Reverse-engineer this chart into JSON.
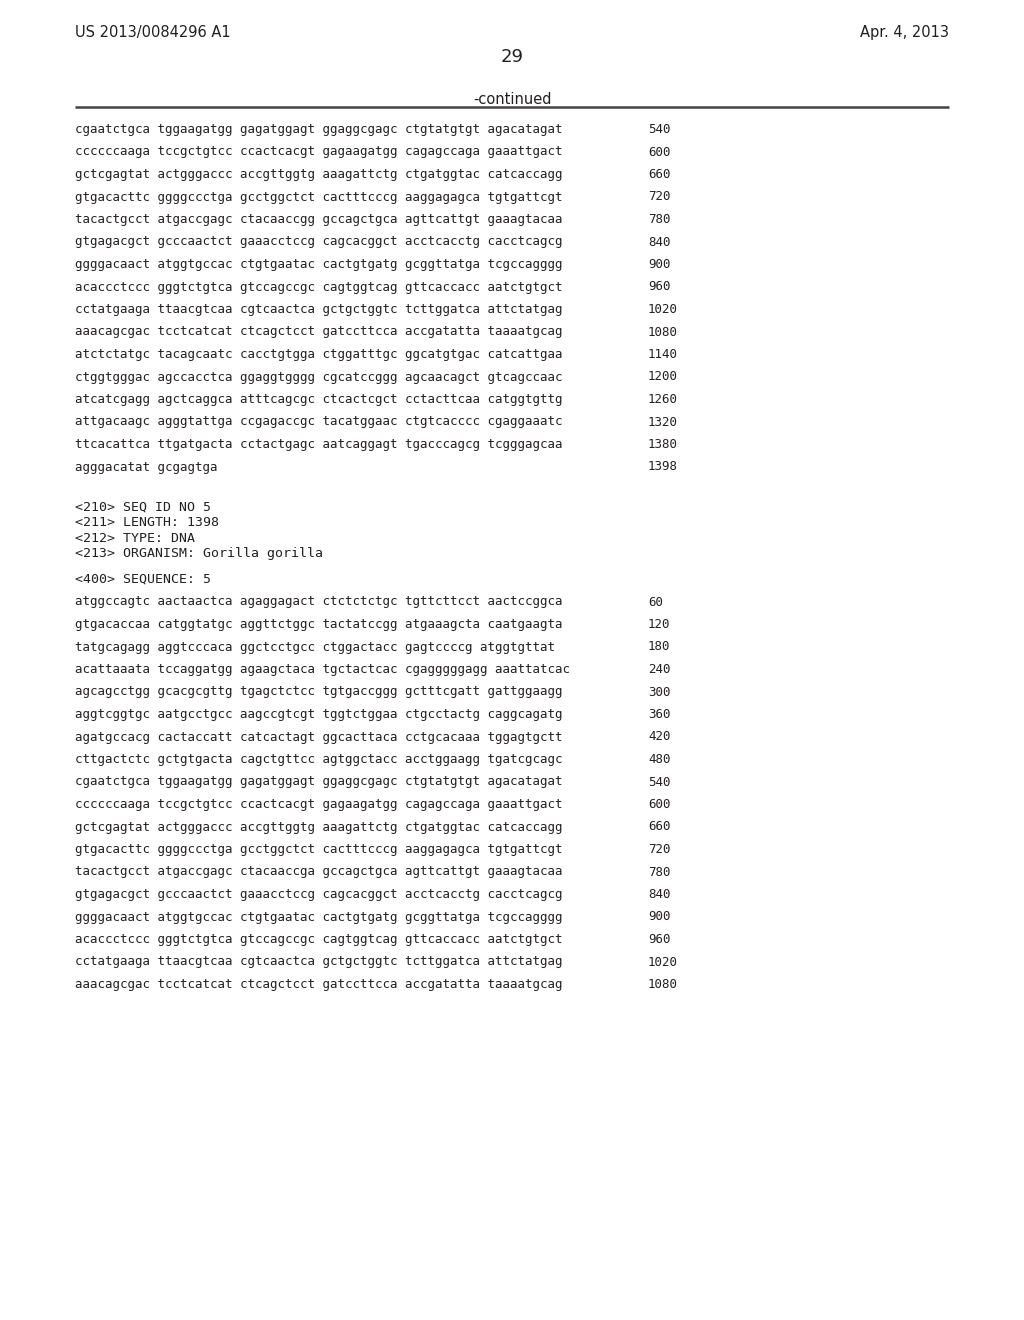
{
  "header_left": "US 2013/0084296 A1",
  "header_right": "Apr. 4, 2013",
  "page_number": "29",
  "continued_text": "-continued",
  "background_color": "#ffffff",
  "text_color": "#231f20",
  "sequence_lines_part1": [
    [
      "cgaatctgca tggaagatgg gagatggagt ggaggcgagc ctgtatgtgt agacatagat",
      "540"
    ],
    [
      "ccccccaaga tccgctgtcc ccactcacgt gagaagatgg cagagccaga gaaattgact",
      "600"
    ],
    [
      "gctcgagtat actgggaccc accgttggtg aaagattctg ctgatggtac catcaccagg",
      "660"
    ],
    [
      "gtgacacttc ggggccctga gcctggctct cactttcccg aaggagagca tgtgattcgt",
      "720"
    ],
    [
      "tacactgcct atgaccgagc ctacaaccgg gccagctgca agttcattgt gaaagtacaa",
      "780"
    ],
    [
      "gtgagacgct gcccaactct gaaacctccg cagcacggct acctcacctg cacctcagcg",
      "840"
    ],
    [
      "ggggacaact atggtgccac ctgtgaatac cactgtgatg gcggttatga tcgccagggg",
      "900"
    ],
    [
      "acaccctccc gggtctgtca gtccagccgc cagtggtcag gttcaccacc aatctgtgct",
      "960"
    ],
    [
      "cctatgaaga ttaacgtcaa cgtcaactca gctgctggtc tcttggatca attctatgag",
      "1020"
    ],
    [
      "aaacagcgac tcctcatcat ctcagctcct gatccttcca accgatatta taaaatgcag",
      "1080"
    ],
    [
      "atctctatgc tacagcaatc cacctgtgga ctggatttgc ggcatgtgac catcattgaa",
      "1140"
    ],
    [
      "ctggtgggac agccacctca ggaggtgggg cgcatccggg agcaacagct gtcagccaac",
      "1200"
    ],
    [
      "atcatcgagg agctcaggca atttcagcgc ctcactcgct cctacttcaa catggtgttg",
      "1260"
    ],
    [
      "attgacaagc agggtattga ccgagaccgc tacatggaac ctgtcacccc cgaggaaatc",
      "1320"
    ],
    [
      "ttcacattca ttgatgacta cctactgagc aatcaggagt tgacccagcg tcgggagcaa",
      "1380"
    ],
    [
      "agggacatat gcgagtga",
      "1398"
    ]
  ],
  "metadata_lines": [
    "<210> SEQ ID NO 5",
    "<211> LENGTH: 1398",
    "<212> TYPE: DNA",
    "<213> ORGANISM: Gorilla gorilla"
  ],
  "sequence_header": "<400> SEQUENCE: 5",
  "sequence_lines_part2": [
    [
      "atggccagtc aactaactca agaggagact ctctctctgc tgttcttcct aactccggca",
      "60"
    ],
    [
      "gtgacaccaa catggtatgc aggttctggc tactatccgg atgaaagcta caatgaagta",
      "120"
    ],
    [
      "tatgcagagg aggtcccaca ggctcctgcc ctggactacc gagtccccg atggtgttat",
      "180"
    ],
    [
      "acattaaata tccaggatgg agaagctaca tgctactcac cgagggggagg aaattatcac",
      "240"
    ],
    [
      "agcagcctgg gcacgcgttg tgagctctcc tgtgaccggg gctttcgatt gattggaagg",
      "300"
    ],
    [
      "aggtcggtgc aatgcctgcc aagccgtcgt tggtctggaa ctgcctactg caggcagatg",
      "360"
    ],
    [
      "agatgccacg cactaccatt catcactagt ggcacttaca cctgcacaaa tggagtgctt",
      "420"
    ],
    [
      "cttgactctc gctgtgacta cagctgttcc agtggctacc acctggaagg tgatcgcagc",
      "480"
    ],
    [
      "cgaatctgca tggaagatgg gagatggagt ggaggcgagc ctgtatgtgt agacatagat",
      "540"
    ],
    [
      "ccccccaaga tccgctgtcc ccactcacgt gagaagatgg cagagccaga gaaattgact",
      "600"
    ],
    [
      "gctcgagtat actgggaccc accgttggtg aaagattctg ctgatggtac catcaccagg",
      "660"
    ],
    [
      "gtgacacttc ggggccctga gcctggctct cactttcccg aaggagagca tgtgattcgt",
      "720"
    ],
    [
      "tacactgcct atgaccgagc ctacaaccga gccagctgca agttcattgt gaaagtacaa",
      "780"
    ],
    [
      "gtgagacgct gcccaactct gaaacctccg cagcacggct acctcacctg cacctcagcg",
      "840"
    ],
    [
      "ggggacaact atggtgccac ctgtgaatac cactgtgatg gcggttatga tcgccagggg",
      "900"
    ],
    [
      "acaccctccc gggtctgtca gtccagccgc cagtggtcag gttcaccacc aatctgtgct",
      "960"
    ],
    [
      "cctatgaaga ttaacgtcaa cgtcaactca gctgctggtc tcttggatca attctatgag",
      "1020"
    ],
    [
      "aaacagcgac tcctcatcat ctcagctcct gatccttcca accgatatta taaaatgcag",
      "1080"
    ]
  ]
}
